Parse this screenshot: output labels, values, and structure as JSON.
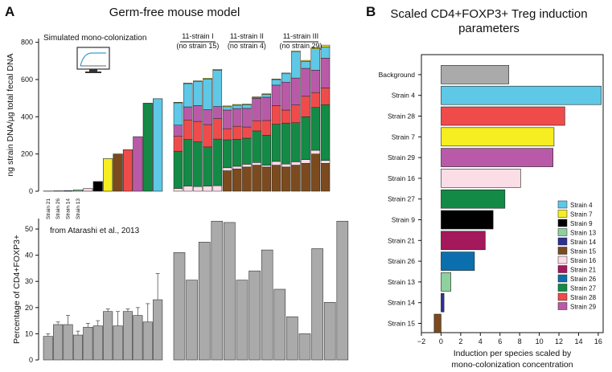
{
  "panel_a": {
    "letter": "A",
    "title": "Germ-free mouse model",
    "top_ylabel": "ng strain DNA/µg total fecal DNA",
    "top_note": "Simulated mono-colonization",
    "bottom_ylabel": "Percentage of CD4+FOXP3+",
    "bottom_note": "from Atarashi et al., 2013",
    "group_labels": [
      {
        "line1": "11-strain I",
        "line2": "(no strain 15)"
      },
      {
        "line1": "11-strain II",
        "line2": "(no strain 4)"
      },
      {
        "line1": "11-strain III",
        "line2": "(no strain 29)"
      }
    ],
    "mono_tick_labels": [
      "Strain 21",
      "Strain 26",
      "Strain 14",
      "Strain 13"
    ]
  },
  "panel_b": {
    "letter": "B",
    "title_line1": "Scaled CD4+FOXP3+ Treg induction",
    "title_line2": "parameters",
    "xlabel_line1": "Induction per species scaled by",
    "xlabel_line2": "mono-colonization concentration"
  },
  "legend": [
    {
      "name": "Strain 4",
      "color": "#5ec8e6"
    },
    {
      "name": "Strain 7",
      "color": "#f6ee20"
    },
    {
      "name": "Strain 9",
      "color": "#000000"
    },
    {
      "name": "Strain 13",
      "color": "#8fd19e"
    },
    {
      "name": "Strain 14",
      "color": "#2e3192"
    },
    {
      "name": "Strain 15",
      "color": "#7b4a1e"
    },
    {
      "name": "Strain 16",
      "color": "#fbdde6"
    },
    {
      "name": "Strain 21",
      "color": "#a3195b"
    },
    {
      "name": "Strain 26",
      "color": "#0c6fad"
    },
    {
      "name": "Strain 27",
      "color": "#138a45"
    },
    {
      "name": "Strain 28",
      "color": "#ef4b4b"
    },
    {
      "name": "Strain 29",
      "color": "#b95aa8"
    }
  ],
  "chart_data": [
    {
      "type": "bar",
      "name": "a-top",
      "ylabel": "ng strain DNA/µg total fecal DNA",
      "ylim": [
        0,
        820
      ],
      "yticks": [
        0,
        200,
        400,
        600,
        800
      ],
      "mono": [
        {
          "strain": "Strain 21",
          "value": 1
        },
        {
          "strain": "Strain 26",
          "value": 2
        },
        {
          "strain": "Strain 14",
          "value": 3
        },
        {
          "strain": "Strain 13",
          "value": 7
        },
        {
          "strain": "Strain 16",
          "value": 14
        },
        {
          "strain": "Strain 9",
          "value": 52
        },
        {
          "strain": "Strain 7",
          "value": 175
        },
        {
          "strain": "Strain 15",
          "value": 200
        },
        {
          "strain": "Strain 28",
          "value": 223
        },
        {
          "strain": "Strain 29",
          "value": 293
        },
        {
          "strain": "Strain 27",
          "value": 473
        },
        {
          "strain": "Strain 4",
          "value": 497
        }
      ],
      "stack_order": [
        "Strain 15",
        "Strain 16",
        "Strain 27",
        "Strain 28",
        "Strain 29",
        "Strain 4",
        "Strain 7"
      ],
      "stacks": [
        [
          0,
          15,
          200,
          80,
          60,
          120,
          3
        ],
        [
          0,
          28,
          250,
          105,
          70,
          125,
          3
        ],
        [
          0,
          25,
          240,
          110,
          85,
          130,
          3
        ],
        [
          0,
          28,
          210,
          120,
          80,
          165,
          4
        ],
        [
          0,
          30,
          250,
          110,
          65,
          195,
          5
        ],
        [
          110,
          16,
          150,
          60,
          100,
          18,
          4
        ],
        [
          120,
          14,
          145,
          70,
          95,
          18,
          4
        ],
        [
          130,
          15,
          140,
          60,
          100,
          20,
          4
        ],
        [
          140,
          14,
          170,
          55,
          120,
          5,
          3
        ],
        [
          130,
          10,
          160,
          80,
          125,
          15,
          3
        ],
        [
          140,
          20,
          200,
          100,
          110,
          30,
          3
        ],
        [
          130,
          16,
          220,
          70,
          150,
          45,
          4
        ],
        [
          140,
          18,
          210,
          95,
          145,
          140,
          5
        ],
        [
          150,
          20,
          230,
          110,
          150,
          38,
          5
        ],
        [
          200,
          20,
          230,
          80,
          120,
          115,
          8
        ],
        [
          150,
          15,
          300,
          90,
          160,
          60,
          10
        ]
      ],
      "group_sizes": [
        5,
        5,
        6
      ]
    },
    {
      "type": "bar",
      "name": "a-bottom",
      "ylabel": "Percentage of CD4+FOXP3+",
      "ylim": [
        0,
        54
      ],
      "yticks": [
        0,
        10,
        20,
        30,
        40,
        50
      ],
      "mono_values": [
        9,
        13.5,
        13.5,
        9.5,
        12.5,
        13,
        18.5,
        13,
        18.5,
        17,
        14.5,
        23
      ],
      "mono_errors": [
        1,
        1,
        3.5,
        1.5,
        1.5,
        2,
        1,
        5.5,
        1,
        3,
        7,
        10
      ],
      "mix_values": [
        41,
        30.5,
        45,
        53,
        52.5,
        30.5,
        34,
        42,
        27,
        16.5,
        10,
        42.5,
        22,
        53
      ]
    },
    {
      "type": "bar",
      "name": "b",
      "orientation": "horizontal",
      "xlabel": "Induction per species scaled by mono-colonization concentration",
      "xlim": [
        -2,
        16.5
      ],
      "xticks": [
        -2,
        0,
        2,
        4,
        6,
        8,
        10,
        12,
        14,
        16
      ],
      "categories": [
        "Background",
        "Strain 4",
        "Strain 28",
        "Strain 7",
        "Strain 29",
        "Strain 16",
        "Strain 27",
        "Strain 9",
        "Strain 21",
        "Strain 26",
        "Strain 13",
        "Strain 14",
        "Strain 15"
      ],
      "values": [
        6.9,
        16.3,
        12.6,
        11.5,
        11.4,
        8.1,
        6.5,
        5.3,
        4.5,
        3.4,
        1.0,
        0.3,
        -0.7
      ],
      "colors": [
        "#aaaaaa",
        "#5ec8e6",
        "#ef4b4b",
        "#f6ee20",
        "#b95aa8",
        "#fbdde6",
        "#138a45",
        "#000000",
        "#a3195b",
        "#0c6fad",
        "#8fd19e",
        "#2e3192",
        "#7b4a1e"
      ]
    }
  ]
}
